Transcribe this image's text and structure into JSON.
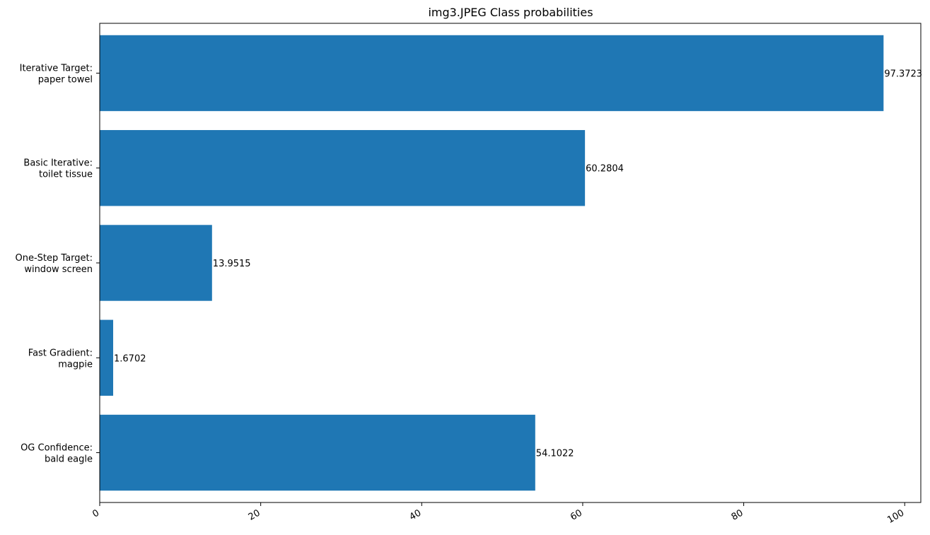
{
  "chart_data": {
    "type": "bar",
    "orientation": "horizontal",
    "title": "img3.JPEG Class probabilities",
    "xlabel": "",
    "ylabel": "",
    "categories": [
      [
        "Iterative Target:",
        "paper towel"
      ],
      [
        "Basic Iterative:",
        "toilet tissue"
      ],
      [
        "One-Step Target:",
        "window screen"
      ],
      [
        "Fast Gradient:",
        "magpie"
      ],
      [
        "OG Confidence:",
        "bald eagle"
      ]
    ],
    "values": [
      97.3723,
      60.2804,
      13.9515,
      1.6702,
      54.1022
    ],
    "value_labels": [
      "97.3723",
      "60.2804",
      "13.9515",
      "1.6702",
      "54.1022"
    ],
    "xlim": [
      0,
      102
    ],
    "xticks": [
      0,
      20,
      40,
      60,
      80,
      100
    ],
    "xtick_labels": [
      "0",
      "20",
      "40",
      "60",
      "80",
      "100"
    ],
    "grid": false,
    "colors": {
      "bar": "#1f77b4",
      "axis": "#000000",
      "text": "#000000"
    }
  }
}
